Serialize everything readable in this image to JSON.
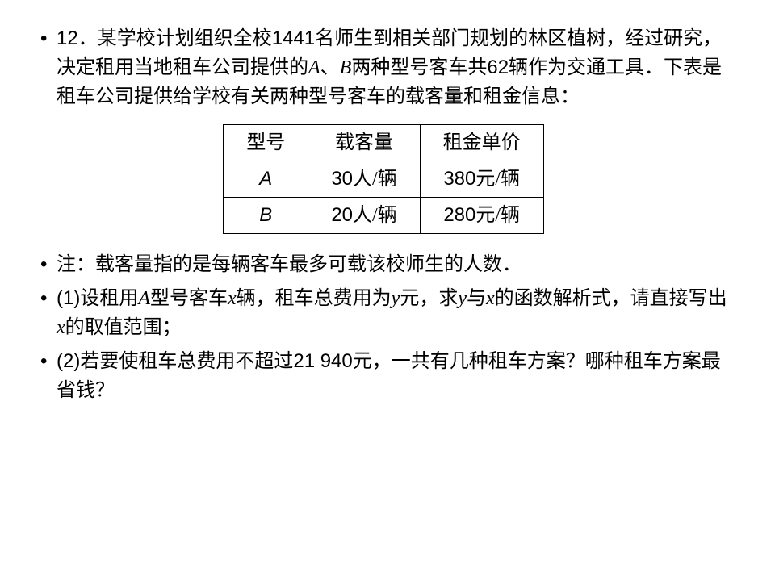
{
  "problem": {
    "number": "12",
    "text_line1_prefix": "．某学校计划组织全校",
    "text_line1_num1": "1441",
    "text_line1_suffix": "名师生到相关部门规划的林区植树，经过研究，决定租用当地租车公司提供的",
    "varA": "A",
    "text_line2_mid": "、",
    "varB": "B",
    "text_line2_suffix1": "两种型号客车共",
    "text_line2_num": "62",
    "text_line2_suffix2": "辆作为交通工具．下表是租车公司提供给学校有关两种型号客车的载客量和租金信息："
  },
  "table": {
    "headers": [
      "型号",
      "载客量",
      "租金单价"
    ],
    "rows": [
      {
        "model": "A",
        "capacity_num": "30",
        "capacity_unit": "人/辆",
        "price_num": "380",
        "price_unit": "元/辆"
      },
      {
        "model": "B",
        "capacity_num": "20",
        "capacity_unit": "人/辆",
        "price_num": "280",
        "price_unit": "元/辆"
      }
    ]
  },
  "note": "注：载客量指的是每辆客车最多可载该校师生的人数．",
  "q1": {
    "prefix": "(1)",
    "t1": "设租用",
    "vA": "A",
    "t2": "型号客车",
    "vx": "x",
    "t3": "辆，租车总费用为",
    "vy": "y",
    "t4": "元，求",
    "vy2": "y",
    "t5": "与",
    "vx2": "x",
    "t6": "的函数解析式，请直接写出",
    "vx3": "x",
    "t7": "的取值范围；"
  },
  "q2": {
    "prefix": "(2)",
    "t1": "若要使租车总费用不超过",
    "num": "21 940",
    "t2": "元，一共有几种租车方案？哪种租车方案最省钱？"
  },
  "bullet": "•"
}
